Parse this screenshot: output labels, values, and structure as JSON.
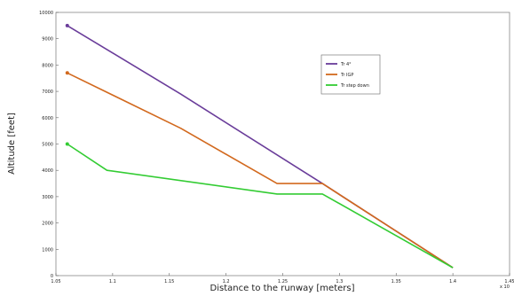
{
  "chart_data": {
    "type": "line",
    "xlabel": "Distance to the runway [meters]",
    "ylabel": "Altitude [feet]",
    "x_exponent_label": "x 10",
    "xlim": [
      1.05,
      1.45
    ],
    "ylim": [
      0,
      10000
    ],
    "grid": false,
    "legend_placement": "top-right",
    "x_ticks": [
      "1.05",
      "1.1",
      "1.15",
      "1.2",
      "1.25",
      "1.3",
      "1.35",
      "1.4",
      "1.45"
    ],
    "y_ticks": [
      "0",
      "1000",
      "2000",
      "3000",
      "4000",
      "5000",
      "6000",
      "7000",
      "8000",
      "9000",
      "10000"
    ],
    "series": [
      {
        "name": "Tr 4°",
        "color": "#6a3d9a",
        "points": [
          [
            1.06,
            9500
          ],
          [
            1.16,
            6900
          ],
          [
            1.285,
            3500
          ],
          [
            1.4,
            300
          ]
        ]
      },
      {
        "name": "Tr IGP",
        "color": "#d2691e",
        "points": [
          [
            1.06,
            7700
          ],
          [
            1.16,
            5600
          ],
          [
            1.245,
            3500
          ],
          [
            1.285,
            3500
          ],
          [
            1.4,
            300
          ]
        ]
      },
      {
        "name": "Tr step down",
        "color": "#33cc33",
        "points": [
          [
            1.06,
            5000
          ],
          [
            1.095,
            4000
          ],
          [
            1.245,
            3100
          ],
          [
            1.285,
            3100
          ],
          [
            1.4,
            300
          ]
        ]
      }
    ]
  }
}
